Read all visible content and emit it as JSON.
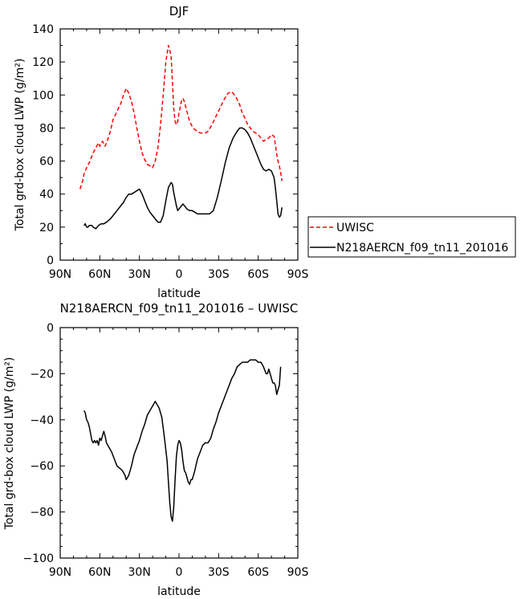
{
  "chart_data": [
    {
      "type": "line",
      "title": "DJF",
      "xlabel": "latitude",
      "ylabel": "Total grd-box cloud LWP (g/m²)",
      "xlim": [
        90,
        -90
      ],
      "ylim": [
        0,
        140
      ],
      "x_ticks": [
        90,
        60,
        30,
        0,
        -30,
        -60,
        -90
      ],
      "x_tick_labels": [
        "90N",
        "60N",
        "30N",
        "0",
        "30S",
        "60S",
        "90S"
      ],
      "y_ticks": [
        0,
        20,
        40,
        60,
        80,
        100,
        120,
        140
      ],
      "y_tick_labels": [
        "0",
        "20",
        "40",
        "60",
        "80",
        "100",
        "120",
        "140"
      ],
      "legend_position": "right",
      "series": [
        {
          "name": "UWISC",
          "color": "#ff0000",
          "dash": "dashed",
          "x": [
            75,
            73,
            72,
            70,
            68,
            66,
            65,
            63,
            61,
            60,
            58,
            56,
            54,
            52,
            50,
            47,
            44,
            42,
            40,
            38,
            36,
            34,
            32,
            30,
            28,
            26,
            24,
            22,
            20,
            18,
            16,
            14,
            12,
            10,
            8,
            6,
            5,
            4,
            3,
            2,
            1,
            0,
            -1,
            -2,
            -3,
            -4,
            -6,
            -8,
            -10,
            -12,
            -14,
            -16,
            -18,
            -20,
            -22,
            -25,
            -28,
            -31,
            -34,
            -37,
            -40,
            -43,
            -46,
            -48,
            -50,
            -52,
            -54,
            -56,
            -58,
            -60,
            -62,
            -64,
            -66,
            -68,
            -70,
            -72,
            -73,
            -74,
            -75,
            -76,
            -77,
            -78
          ],
          "y": [
            43,
            48,
            52,
            56,
            59,
            63,
            65,
            68,
            71,
            69,
            72,
            69,
            73,
            78,
            85,
            90,
            95,
            100,
            104,
            101,
            96,
            89,
            80,
            72,
            65,
            61,
            58,
            57,
            56,
            60,
            68,
            82,
            100,
            120,
            130,
            124,
            108,
            92,
            84,
            82,
            84,
            89,
            93,
            97,
            98,
            96,
            90,
            84,
            81,
            79,
            78,
            77,
            77,
            77,
            78,
            82,
            87,
            92,
            97,
            101,
            102,
            99,
            94,
            89,
            86,
            82,
            80,
            78,
            77,
            76,
            74,
            72,
            73,
            74,
            76,
            75,
            70,
            64,
            60,
            57,
            53,
            48
          ]
        },
        {
          "name": "N218AERCN_f09_tn11_201016",
          "color": "#000000",
          "dash": "solid",
          "x": [
            72,
            71,
            70,
            69,
            68,
            66,
            65,
            63,
            61,
            59,
            57,
            55,
            52,
            50,
            47,
            44,
            42,
            40,
            38,
            36,
            34,
            32,
            30,
            28,
            26,
            24,
            22,
            20,
            18,
            16,
            14,
            12,
            10,
            8,
            6,
            5,
            4,
            2,
            1,
            0,
            -1,
            -2,
            -3,
            -4,
            -6,
            -8,
            -10,
            -12,
            -14,
            -17,
            -20,
            -23,
            -26,
            -29,
            -32,
            -35,
            -38,
            -41,
            -44,
            -46,
            -48,
            -50,
            -52,
            -54,
            -56,
            -58,
            -60,
            -62,
            -64,
            -66,
            -68,
            -70,
            -72,
            -73,
            -74,
            -75,
            -76,
            -77,
            -78
          ],
          "y": [
            21,
            22,
            20,
            20,
            21,
            21,
            20,
            19,
            21,
            22,
            22,
            23,
            25,
            27,
            30,
            33,
            35,
            38,
            40,
            40,
            41,
            42,
            43,
            40,
            36,
            32,
            29,
            27,
            25,
            23,
            23,
            27,
            36,
            44,
            47,
            46,
            41,
            33,
            30,
            31,
            32,
            33,
            34,
            33,
            31,
            30,
            30,
            29,
            28,
            28,
            28,
            28,
            30,
            38,
            48,
            59,
            68,
            74,
            78,
            80,
            80,
            79,
            77,
            74,
            70,
            66,
            62,
            58,
            55,
            54,
            55,
            54,
            50,
            44,
            36,
            28,
            26,
            27,
            32
          ]
        }
      ]
    },
    {
      "type": "line",
      "title": "N218AERCN_f09_tn11_201016 – UWISC",
      "xlabel": "latitude",
      "ylabel": "Total grd-box cloud LWP (g/m²)",
      "xlim": [
        90,
        -90
      ],
      "ylim": [
        -100,
        0
      ],
      "x_ticks": [
        90,
        60,
        30,
        0,
        -30,
        -60,
        -90
      ],
      "x_tick_labels": [
        "90N",
        "60N",
        "30N",
        "0",
        "30S",
        "60S",
        "90S"
      ],
      "y_ticks": [
        -100,
        -80,
        -60,
        -40,
        -20,
        0
      ],
      "y_tick_labels": [
        "−100",
        "−80",
        "−60",
        "−40",
        "−20",
        "0"
      ],
      "series": [
        {
          "color": "#000000",
          "dash": "solid",
          "x": [
            72,
            71,
            70,
            69,
            68,
            67,
            66,
            65,
            64,
            63,
            62,
            61,
            60,
            59,
            58,
            57,
            56,
            55,
            53,
            51,
            49,
            47,
            45,
            43,
            41,
            40,
            38,
            36,
            34,
            32,
            30,
            28,
            26,
            24,
            22,
            20,
            19,
            18,
            17,
            15,
            13,
            11,
            9,
            8,
            7,
            6,
            5,
            4,
            3,
            2,
            1,
            0,
            -1,
            -2,
            -3,
            -4,
            -5,
            -6,
            -7,
            -8,
            -9,
            -10,
            -11,
            -12,
            -14,
            -16,
            -18,
            -20,
            -22,
            -24,
            -26,
            -28,
            -30,
            -32,
            -34,
            -36,
            -38,
            -40,
            -42,
            -44,
            -46,
            -48,
            -50,
            -52,
            -54,
            -56,
            -58,
            -60,
            -62,
            -64,
            -66,
            -67,
            -68,
            -69,
            -70,
            -71,
            -72,
            -73,
            -74,
            -75,
            -76,
            -77
          ],
          "y": [
            -36,
            -37,
            -40,
            -41,
            -43,
            -46,
            -49,
            -50,
            -49,
            -50,
            -49,
            -51,
            -48,
            -49,
            -47,
            -45,
            -47,
            -50,
            -52,
            -54,
            -57,
            -60,
            -61,
            -62,
            -64,
            -66,
            -64,
            -60,
            -55,
            -52,
            -49,
            -45,
            -42,
            -38,
            -36,
            -34,
            -33,
            -32,
            -33,
            -35,
            -39,
            -48,
            -58,
            -67,
            -76,
            -82,
            -84,
            -78,
            -66,
            -56,
            -51,
            -49,
            -50,
            -53,
            -58,
            -62,
            -63,
            -65,
            -67,
            -68,
            -66,
            -66,
            -64,
            -62,
            -57,
            -54,
            -51,
            -50,
            -50,
            -48,
            -44,
            -41,
            -37,
            -34,
            -31,
            -28,
            -25,
            -22,
            -20,
            -17,
            -16,
            -15,
            -15,
            -15,
            -14,
            -14,
            -14,
            -15,
            -15,
            -17,
            -20,
            -20,
            -18,
            -20,
            -22,
            -24,
            -24,
            -25,
            -29,
            -27,
            -25,
            -17
          ]
        }
      ]
    }
  ]
}
